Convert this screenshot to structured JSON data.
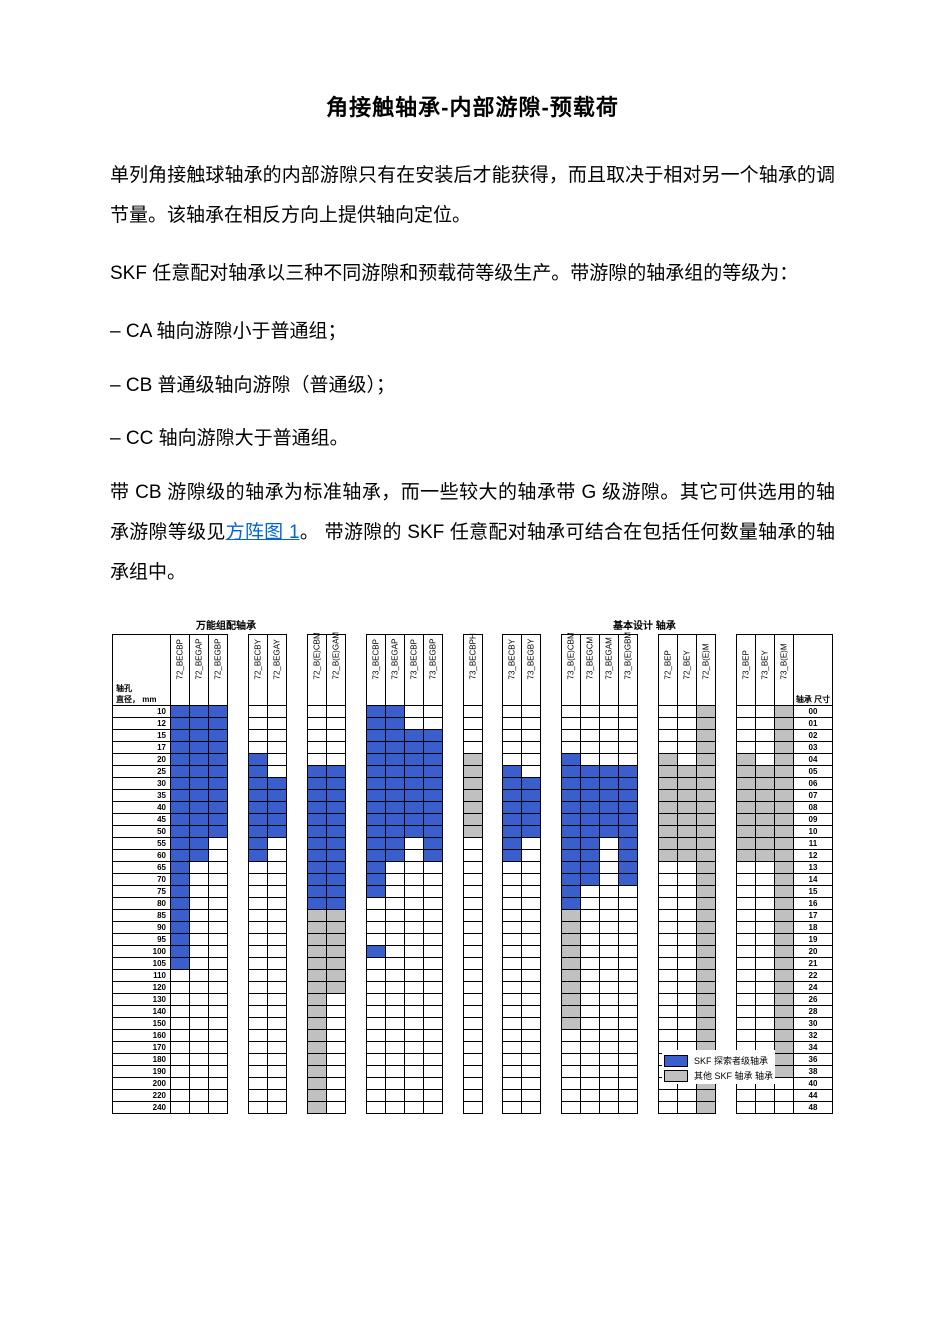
{
  "title": "角接触轴承-内部游隙-预载荷",
  "paragraphs": {
    "p1": "单列角接触球轴承的内部游隙只有在安装后才能获得，而且取决于相对另一个轴承的调节量。该轴承在相反方向上提供轴向定位。",
    "p2": "SKF 任意配对轴承以三种不同游隙和预载荷等级生产。带游隙的轴承组的等级为：",
    "li1": "– CA 轴向游隙小于普通组；",
    "li2": "– CB 普通级轴向游隙（普通级）；",
    "li3": "– CC 轴向游隙大于普通组。",
    "p3a": "带 CB 游隙级的轴承为标准轴承，而一些较大的轴承带 G 级游隙。其它可供选用的轴承游隙等级见",
    "p3link": "方阵图 1",
    "p3b": "。 带游隙的 SKF 任意配对轴承可结合在包括任何数量轴承的轴承组中。"
  },
  "chart": {
    "header_left": "万能组配轴承",
    "header_right": "基本设计 轴承",
    "row_label_title": "轴孔\n直径， mm",
    "size_label_title": "轴承 尺寸",
    "legend_blue": "SKF 探索者级轴承",
    "legend_grey": "其他 SKF 轴承 轴承",
    "colors": {
      "blue": "#3a5fcd",
      "grey": "#c0c0c0",
      "white": "#ffffff",
      "border": "#000000"
    },
    "column_groups": [
      [
        "72_BECBP",
        "72_BEGAP",
        "72_BEGBP"
      ],
      [
        "72_BECBY",
        "72_BEGAY"
      ],
      [
        "72_B(E)CBM",
        "72_B(E)GAM"
      ],
      [
        "73_BECBP",
        "73_BEGAP",
        "73_BECBP",
        "73_BEGBP"
      ],
      [
        "73_BECBPH"
      ],
      [
        "73_BECBY",
        "73_BEGBY"
      ],
      [
        "73_B(E)CBM",
        "73_BEGCM",
        "73_BEGAM",
        "73_B(E)GBM"
      ],
      [
        "72_BEP",
        "72_BEY",
        "72_B(E)M"
      ],
      [
        "73_BEP",
        "73_BEY",
        "73_B(E)M"
      ]
    ],
    "rows": [
      {
        "d": "10",
        "s": "00",
        "v": [
          "b",
          "b",
          "b",
          "",
          "",
          "",
          "",
          "b",
          "b",
          "",
          "",
          "",
          "",
          "",
          "",
          "",
          "",
          "",
          "",
          "",
          "g",
          "",
          "",
          "g"
        ]
      },
      {
        "d": "12",
        "s": "01",
        "v": [
          "b",
          "b",
          "b",
          "",
          "",
          "",
          "",
          "b",
          "b",
          "",
          "",
          "",
          "",
          "",
          "",
          "",
          "",
          "",
          "",
          "",
          "g",
          "",
          "",
          "g"
        ]
      },
      {
        "d": "15",
        "s": "02",
        "v": [
          "b",
          "b",
          "b",
          "",
          "",
          "",
          "",
          "b",
          "b",
          "b",
          "b",
          "",
          "",
          "",
          "",
          "",
          "",
          "",
          "",
          "",
          "g",
          "",
          "",
          "g"
        ]
      },
      {
        "d": "17",
        "s": "03",
        "v": [
          "b",
          "b",
          "b",
          "",
          "",
          "",
          "",
          "b",
          "b",
          "b",
          "b",
          "",
          "",
          "",
          "",
          "",
          "",
          "",
          "",
          "",
          "g",
          "",
          "",
          "g"
        ]
      },
      {
        "d": "20",
        "s": "04",
        "v": [
          "b",
          "b",
          "b",
          "b",
          "",
          "",
          "",
          "b",
          "b",
          "b",
          "b",
          "g",
          "",
          "",
          "b",
          "",
          "",
          "",
          "g",
          "",
          "g",
          "g",
          "",
          "g"
        ]
      },
      {
        "d": "25",
        "s": "05",
        "v": [
          "b",
          "b",
          "b",
          "b",
          "",
          "b",
          "b",
          "b",
          "b",
          "b",
          "b",
          "g",
          "b",
          "",
          "b",
          "b",
          "b",
          "b",
          "g",
          "g",
          "g",
          "g",
          "g",
          "g"
        ]
      },
      {
        "d": "30",
        "s": "06",
        "v": [
          "b",
          "b",
          "b",
          "b",
          "b",
          "b",
          "b",
          "b",
          "b",
          "b",
          "b",
          "g",
          "b",
          "b",
          "b",
          "b",
          "b",
          "b",
          "g",
          "g",
          "g",
          "g",
          "g",
          "g"
        ]
      },
      {
        "d": "35",
        "s": "07",
        "v": [
          "b",
          "b",
          "b",
          "b",
          "b",
          "b",
          "b",
          "b",
          "b",
          "b",
          "b",
          "g",
          "b",
          "b",
          "b",
          "b",
          "b",
          "b",
          "g",
          "g",
          "g",
          "g",
          "g",
          "g"
        ]
      },
      {
        "d": "40",
        "s": "08",
        "v": [
          "b",
          "b",
          "b",
          "b",
          "b",
          "b",
          "b",
          "b",
          "b",
          "b",
          "b",
          "g",
          "b",
          "b",
          "b",
          "b",
          "b",
          "b",
          "g",
          "g",
          "g",
          "g",
          "g",
          "g"
        ]
      },
      {
        "d": "45",
        "s": "09",
        "v": [
          "b",
          "b",
          "b",
          "b",
          "b",
          "b",
          "b",
          "b",
          "b",
          "b",
          "b",
          "g",
          "b",
          "b",
          "b",
          "b",
          "b",
          "b",
          "g",
          "g",
          "g",
          "g",
          "g",
          "g"
        ]
      },
      {
        "d": "50",
        "s": "10",
        "v": [
          "b",
          "b",
          "b",
          "b",
          "b",
          "b",
          "b",
          "b",
          "b",
          "b",
          "b",
          "g",
          "b",
          "b",
          "b",
          "b",
          "b",
          "b",
          "g",
          "g",
          "g",
          "g",
          "g",
          "g"
        ]
      },
      {
        "d": "55",
        "s": "11",
        "v": [
          "b",
          "b",
          "",
          "b",
          "",
          "b",
          "b",
          "b",
          "b",
          "",
          "b",
          "",
          "b",
          "",
          "b",
          "b",
          "",
          "b",
          "g",
          "g",
          "g",
          "g",
          "g",
          "g"
        ]
      },
      {
        "d": "60",
        "s": "12",
        "v": [
          "b",
          "b",
          "",
          "b",
          "",
          "b",
          "b",
          "b",
          "b",
          "",
          "b",
          "",
          "b",
          "",
          "b",
          "b",
          "",
          "b",
          "g",
          "g",
          "g",
          "g",
          "g",
          "g"
        ]
      },
      {
        "d": "65",
        "s": "13",
        "v": [
          "b",
          "",
          "",
          "",
          "",
          "b",
          "b",
          "b",
          "",
          "",
          "",
          "",
          "",
          "",
          "b",
          "b",
          "",
          "b",
          "",
          "",
          "g",
          "",
          "",
          "g"
        ]
      },
      {
        "d": "70",
        "s": "14",
        "v": [
          "b",
          "",
          "",
          "",
          "",
          "b",
          "b",
          "b",
          "",
          "",
          "",
          "",
          "",
          "",
          "b",
          "b",
          "",
          "b",
          "",
          "",
          "g",
          "",
          "",
          "g"
        ]
      },
      {
        "d": "75",
        "s": "15",
        "v": [
          "b",
          "",
          "",
          "",
          "",
          "b",
          "b",
          "b",
          "",
          "",
          "",
          "",
          "",
          "",
          "b",
          "",
          "",
          "",
          "",
          "",
          "g",
          "",
          "",
          "g"
        ]
      },
      {
        "d": "80",
        "s": "16",
        "v": [
          "b",
          "",
          "",
          "",
          "",
          "b",
          "b",
          "",
          "",
          "",
          "",
          "",
          "",
          "",
          "b",
          "",
          "",
          "",
          "",
          "",
          "g",
          "",
          "",
          "g"
        ]
      },
      {
        "d": "85",
        "s": "17",
        "v": [
          "b",
          "",
          "",
          "",
          "",
          "g",
          "g",
          "",
          "",
          "",
          "",
          "",
          "",
          "",
          "g",
          "",
          "",
          "",
          "",
          "",
          "g",
          "",
          "",
          "g"
        ]
      },
      {
        "d": "90",
        "s": "18",
        "v": [
          "b",
          "",
          "",
          "",
          "",
          "g",
          "g",
          "",
          "",
          "",
          "",
          "",
          "",
          "",
          "g",
          "",
          "",
          "",
          "",
          "",
          "g",
          "",
          "",
          "g"
        ]
      },
      {
        "d": "95",
        "s": "19",
        "v": [
          "b",
          "",
          "",
          "",
          "",
          "g",
          "g",
          "",
          "",
          "",
          "",
          "",
          "",
          "",
          "g",
          "",
          "",
          "",
          "",
          "",
          "g",
          "",
          "",
          "g"
        ]
      },
      {
        "d": "100",
        "s": "20",
        "v": [
          "b",
          "",
          "",
          "",
          "",
          "g",
          "g",
          "b",
          "",
          "",
          "",
          "",
          "",
          "",
          "g",
          "",
          "",
          "",
          "",
          "",
          "g",
          "",
          "",
          "g"
        ]
      },
      {
        "d": "105",
        "s": "21",
        "v": [
          "b",
          "",
          "",
          "",
          "",
          "g",
          "g",
          "",
          "",
          "",
          "",
          "",
          "",
          "",
          "g",
          "",
          "",
          "",
          "",
          "",
          "g",
          "",
          "",
          "g"
        ]
      },
      {
        "d": "110",
        "s": "22",
        "v": [
          "",
          "",
          "",
          "",
          "",
          "g",
          "g",
          "",
          "",
          "",
          "",
          "",
          "",
          "",
          "g",
          "",
          "",
          "",
          "",
          "",
          "g",
          "",
          "",
          "g"
        ]
      },
      {
        "d": "120",
        "s": "24",
        "v": [
          "",
          "",
          "",
          "",
          "",
          "g",
          "g",
          "",
          "",
          "",
          "",
          "",
          "",
          "",
          "g",
          "",
          "",
          "",
          "",
          "",
          "g",
          "",
          "",
          "g"
        ]
      },
      {
        "d": "130",
        "s": "26",
        "v": [
          "",
          "",
          "",
          "",
          "",
          "g",
          "",
          "",
          "",
          "",
          "",
          "",
          "",
          "",
          "g",
          "",
          "",
          "",
          "",
          "",
          "g",
          "",
          "",
          "g"
        ]
      },
      {
        "d": "140",
        "s": "28",
        "v": [
          "",
          "",
          "",
          "",
          "",
          "g",
          "",
          "",
          "",
          "",
          "",
          "",
          "",
          "",
          "g",
          "",
          "",
          "",
          "",
          "",
          "g",
          "",
          "",
          "g"
        ]
      },
      {
        "d": "150",
        "s": "30",
        "v": [
          "",
          "",
          "",
          "",
          "",
          "g",
          "",
          "",
          "",
          "",
          "",
          "",
          "",
          "",
          "g",
          "",
          "",
          "",
          "",
          "",
          "g",
          "",
          "",
          "g"
        ]
      },
      {
        "d": "160",
        "s": "32",
        "v": [
          "",
          "",
          "",
          "",
          "",
          "g",
          "",
          "",
          "",
          "",
          "",
          "",
          "",
          "",
          "",
          "",
          "",
          "",
          "",
          "",
          "g",
          "",
          "",
          "g"
        ]
      },
      {
        "d": "170",
        "s": "34",
        "v": [
          "",
          "",
          "",
          "",
          "",
          "g",
          "",
          "",
          "",
          "",
          "",
          "",
          "",
          "",
          "",
          "",
          "",
          "",
          "",
          "",
          "g",
          "",
          "",
          "g"
        ]
      },
      {
        "d": "180",
        "s": "36",
        "v": [
          "",
          "",
          "",
          "",
          "",
          "g",
          "",
          "",
          "",
          "",
          "",
          "",
          "",
          "",
          "",
          "",
          "",
          "",
          "",
          "",
          "g",
          "",
          "",
          "g"
        ]
      },
      {
        "d": "190",
        "s": "38",
        "v": [
          "",
          "",
          "",
          "",
          "",
          "g",
          "",
          "",
          "",
          "",
          "",
          "",
          "",
          "",
          "",
          "",
          "",
          "",
          "",
          "",
          "g",
          "",
          "",
          "g"
        ]
      },
      {
        "d": "200",
        "s": "40",
        "v": [
          "",
          "",
          "",
          "",
          "",
          "g",
          "",
          "",
          "",
          "",
          "",
          "",
          "",
          "",
          "",
          "",
          "",
          "",
          "",
          "",
          "g",
          "",
          "",
          ""
        ]
      },
      {
        "d": "220",
        "s": "44",
        "v": [
          "",
          "",
          "",
          "",
          "",
          "g",
          "",
          "",
          "",
          "",
          "",
          "",
          "",
          "",
          "",
          "",
          "",
          "",
          "",
          "",
          "g",
          "",
          "",
          ""
        ]
      },
      {
        "d": "240",
        "s": "48",
        "v": [
          "",
          "",
          "",
          "",
          "",
          "g",
          "",
          "",
          "",
          "",
          "",
          "",
          "",
          "",
          "",
          "",
          "",
          "",
          "",
          "",
          "g",
          "",
          "",
          ""
        ]
      }
    ]
  }
}
